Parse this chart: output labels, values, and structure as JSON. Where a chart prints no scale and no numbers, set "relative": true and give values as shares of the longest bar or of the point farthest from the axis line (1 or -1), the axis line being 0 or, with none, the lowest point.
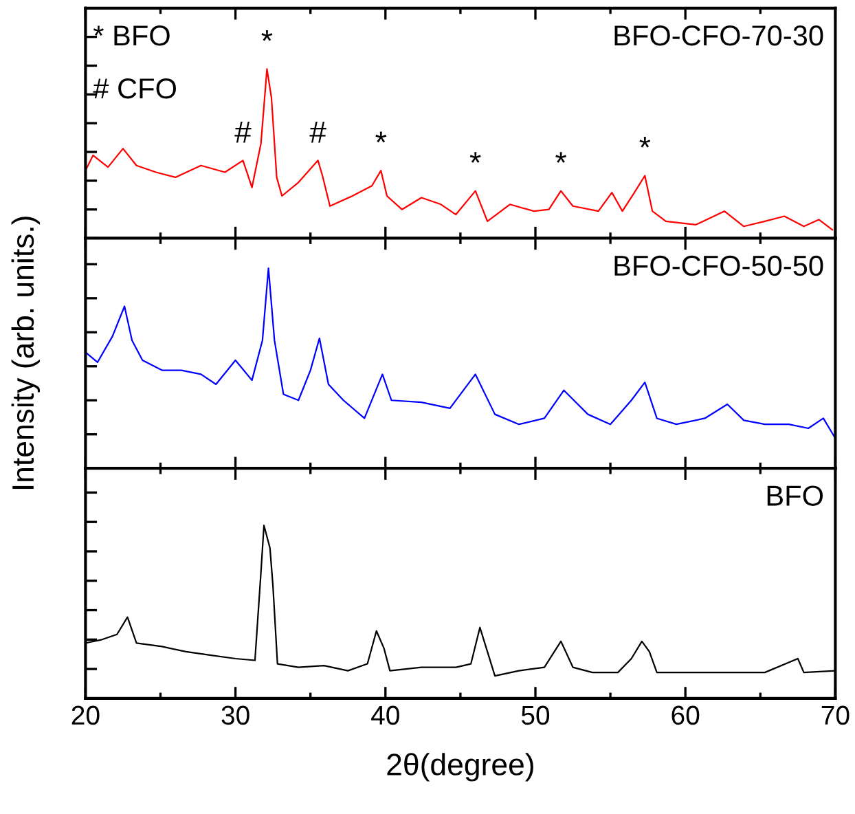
{
  "chart_data": [
    {
      "type": "line",
      "relative": true,
      "xlim": [
        20,
        70
      ],
      "xticks": [
        20,
        30,
        40,
        50,
        60,
        70
      ],
      "tick_labels": false,
      "legend": false,
      "annotations": [
        "* BFO",
        "# CFO",
        {
          "text": "*",
          "x": 32.1,
          "y": 1.0
        },
        {
          "text": "#",
          "x": 30.5,
          "y": 0.46
        },
        {
          "text": "#",
          "x": 35.5,
          "y": 0.46
        },
        {
          "text": "*",
          "x": 39.7,
          "y": 0.4
        },
        {
          "text": "*",
          "x": 46.0,
          "y": 0.28
        },
        {
          "text": "*",
          "x": 51.7,
          "y": 0.28
        },
        {
          "text": "*",
          "x": 57.3,
          "y": 0.37
        }
      ],
      "series": [
        {
          "name": "BFO-CFO-70-30",
          "color": "#ff0000",
          "x": [
            20.0,
            20.5,
            21.5,
            22.5,
            23.4,
            24.7,
            26.0,
            27.7,
            29.3,
            30.5,
            31.1,
            31.7,
            32.1,
            32.4,
            32.75,
            33.1,
            34.2,
            35.5,
            35.8,
            36.3,
            37.8,
            39.1,
            39.7,
            40.1,
            41.1,
            42.4,
            43.7,
            44.7,
            46.0,
            46.8,
            48.3,
            49.9,
            50.9,
            51.7,
            52.5,
            54.2,
            55.1,
            55.8,
            56.6,
            57.3,
            57.8,
            58.7,
            60.7,
            62.6,
            63.9,
            65.3,
            66.6,
            67.9,
            68.9,
            69.8
          ],
          "values": [
            0.4,
            0.49,
            0.42,
            0.53,
            0.43,
            0.39,
            0.36,
            0.43,
            0.39,
            0.46,
            0.3,
            0.56,
            1.0,
            0.83,
            0.36,
            0.25,
            0.33,
            0.46,
            0.37,
            0.19,
            0.25,
            0.31,
            0.4,
            0.25,
            0.17,
            0.24,
            0.2,
            0.14,
            0.28,
            0.1,
            0.2,
            0.16,
            0.17,
            0.28,
            0.19,
            0.16,
            0.27,
            0.16,
            0.27,
            0.37,
            0.16,
            0.1,
            0.08,
            0.16,
            0.07,
            0.1,
            0.13,
            0.07,
            0.11,
            0.05
          ]
        }
      ]
    },
    {
      "type": "line",
      "relative": true,
      "xlim": [
        20,
        70
      ],
      "xticks": [
        20,
        30,
        40,
        50,
        60,
        70
      ],
      "tick_labels": false,
      "legend": false,
      "series": [
        {
          "name": "BFO-CFO-50-50",
          "color": "#0000ff",
          "x": [
            20.0,
            20.8,
            21.8,
            22.6,
            23.1,
            23.8,
            25.1,
            26.4,
            27.7,
            28.7,
            30.0,
            31.1,
            31.8,
            32.2,
            32.6,
            33.2,
            34.2,
            35.0,
            35.6,
            36.2,
            37.2,
            38.6,
            39.8,
            40.4,
            42.4,
            44.3,
            46.0,
            47.3,
            48.9,
            50.6,
            51.9,
            53.5,
            55.0,
            56.4,
            57.3,
            58.1,
            59.4,
            61.3,
            62.8,
            63.9,
            65.3,
            66.9,
            68.2,
            69.2,
            70.0
          ],
          "values": [
            0.58,
            0.53,
            0.66,
            0.81,
            0.64,
            0.54,
            0.49,
            0.49,
            0.47,
            0.42,
            0.54,
            0.44,
            0.64,
            1.0,
            0.64,
            0.37,
            0.34,
            0.49,
            0.65,
            0.42,
            0.34,
            0.25,
            0.47,
            0.34,
            0.33,
            0.3,
            0.47,
            0.27,
            0.22,
            0.25,
            0.39,
            0.27,
            0.22,
            0.34,
            0.43,
            0.25,
            0.22,
            0.25,
            0.32,
            0.24,
            0.22,
            0.22,
            0.2,
            0.25,
            0.15
          ]
        }
      ]
    },
    {
      "type": "line",
      "relative": true,
      "xlim": [
        20,
        70
      ],
      "xticks": [
        20,
        30,
        40,
        50,
        60,
        70
      ],
      "tick_labels": "x",
      "legend": false,
      "xlabel": "2θ(degree)",
      "ylabel": "Intensity (arb. units.)",
      "series": [
        {
          "name": "BFO",
          "color": "#000000",
          "x": [
            20.0,
            21.1,
            22.1,
            22.8,
            23.4,
            25.1,
            26.7,
            28.3,
            30.0,
            31.3,
            31.7,
            31.9,
            32.3,
            32.5,
            32.8,
            34.2,
            35.9,
            37.5,
            38.8,
            39.4,
            39.9,
            40.3,
            42.4,
            44.7,
            45.7,
            46.3,
            46.8,
            47.3,
            48.9,
            50.6,
            51.7,
            52.5,
            53.8,
            55.5,
            56.4,
            57.1,
            57.6,
            58.1,
            60.4,
            63.0,
            65.3,
            67.5,
            67.9,
            70.0
          ],
          "values": [
            0.32,
            0.34,
            0.37,
            0.47,
            0.32,
            0.3,
            0.27,
            0.25,
            0.23,
            0.22,
            0.73,
            1.0,
            0.87,
            0.65,
            0.2,
            0.18,
            0.19,
            0.16,
            0.2,
            0.39,
            0.29,
            0.16,
            0.18,
            0.18,
            0.2,
            0.41,
            0.27,
            0.13,
            0.16,
            0.18,
            0.33,
            0.18,
            0.15,
            0.15,
            0.23,
            0.33,
            0.27,
            0.15,
            0.15,
            0.15,
            0.15,
            0.23,
            0.15,
            0.16
          ]
        }
      ]
    }
  ]
}
